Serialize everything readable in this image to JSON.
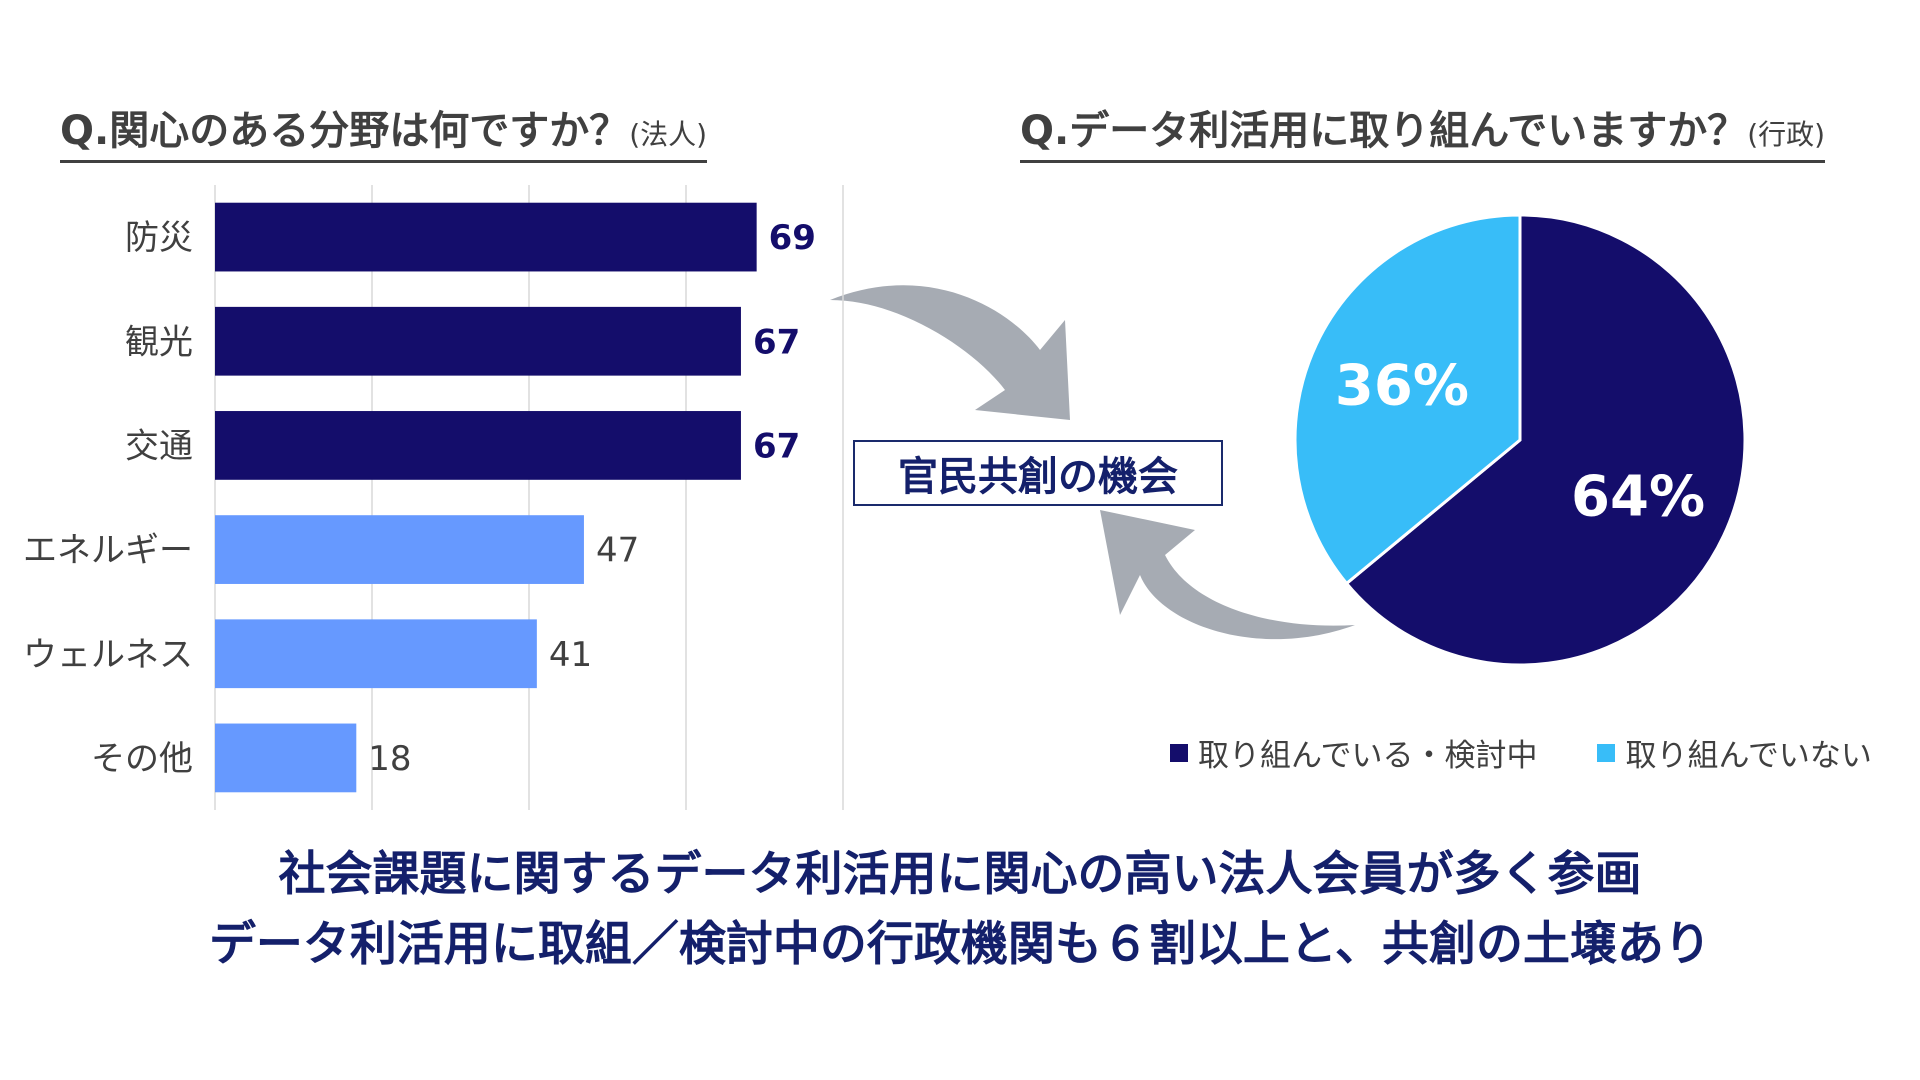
{
  "left_question": {
    "title": "Q.関心のある分野は何ですか？",
    "sub": "(法人)"
  },
  "right_question": {
    "title": "Q.データ利活用に取り組んでいますか？",
    "sub": "(行政)"
  },
  "center_label": "官民共創の機会",
  "conclusion": {
    "line1": "社会課題に関するデータ利活用に関心の高い法人会員が多く参画",
    "line2": "データ利活用に取組／検討中の行政機関も６割以上と、共創の土壌あり"
  },
  "chart_data": [
    {
      "type": "bar",
      "orientation": "horizontal",
      "categories": [
        "防災",
        "観光",
        "交通",
        "エネルギー",
        "ウェルネス",
        "その他"
      ],
      "values": [
        69,
        67,
        67,
        47,
        41,
        18
      ],
      "bar_colors": [
        "#140d6b",
        "#140d6b",
        "#140d6b",
        "#6699ff",
        "#6699ff",
        "#6699ff"
      ],
      "label_emphasis": [
        true,
        true,
        true,
        false,
        false,
        false
      ],
      "xlim": [
        0,
        80
      ],
      "grid": "vertical"
    },
    {
      "type": "pie",
      "labels": [
        "取り組んでいる・検討中",
        "取り組んでいない"
      ],
      "values": [
        64,
        36
      ],
      "value_labels": [
        "64%",
        "36%"
      ],
      "colors": [
        "#140d6b",
        "#38bdf8"
      ],
      "legend": "bottom"
    }
  ],
  "colors": {
    "dark_navy": "#140d6b",
    "light_blue": "#6699ff",
    "sky": "#38bdf8",
    "arrow_gray": "#a6abb3"
  }
}
